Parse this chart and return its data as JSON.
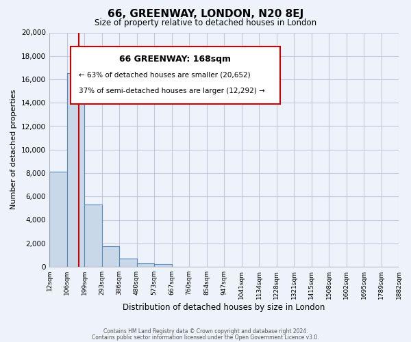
{
  "title": "66, GREENWAY, LONDON, N20 8EJ",
  "subtitle": "Size of property relative to detached houses in London",
  "xlabel": "Distribution of detached houses by size in London",
  "ylabel": "Number of detached properties",
  "bar_color": "#c8d8e8",
  "bar_edge_color": "#5588bb",
  "background_color": "#eef2fa",
  "grid_color": "#c0c8dc",
  "bin_labels": [
    "12sqm",
    "106sqm",
    "199sqm",
    "293sqm",
    "386sqm",
    "480sqm",
    "573sqm",
    "667sqm",
    "760sqm",
    "854sqm",
    "947sqm",
    "1041sqm",
    "1134sqm",
    "1228sqm",
    "1321sqm",
    "1415sqm",
    "1508sqm",
    "1602sqm",
    "1695sqm",
    "1789sqm",
    "1882sqm"
  ],
  "bar_values": [
    8100,
    16500,
    5300,
    1750,
    700,
    280,
    230,
    0,
    0,
    0,
    0,
    0,
    0,
    0,
    0,
    0,
    0,
    0,
    0,
    0
  ],
  "ylim": [
    0,
    20000
  ],
  "yticks": [
    0,
    2000,
    4000,
    6000,
    8000,
    10000,
    12000,
    14000,
    16000,
    18000,
    20000
  ],
  "property_name": "66 GREENWAY: 168sqm",
  "annotation_line1": "← 63% of detached houses are smaller (20,652)",
  "annotation_line2": "37% of semi-detached houses are larger (12,292) →",
  "footer1": "Contains HM Land Registry data © Crown copyright and database right 2024.",
  "footer2": "Contains public sector information licensed under the Open Government Licence v3.0.",
  "box_color": "#ffffff",
  "box_edge_color": "#cc0000",
  "vline_color": "#cc0000"
}
